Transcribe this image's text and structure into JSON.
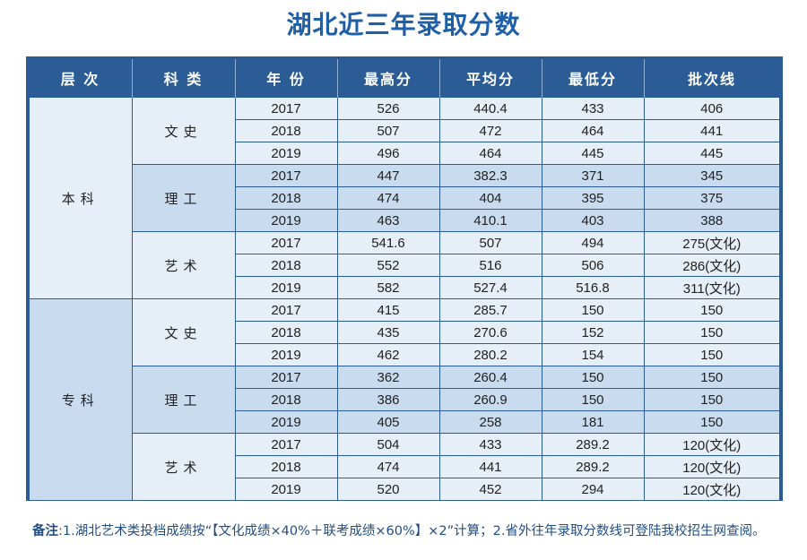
{
  "title": "湖北近三年录取分数",
  "headers": [
    "层 次",
    "科 类",
    "年 份",
    "最高分",
    "平均分",
    "最低分",
    "批次线"
  ],
  "groups": [
    {
      "level": "本科",
      "subjects": [
        {
          "name": "文史",
          "rows": [
            [
              "2017",
              "526",
              "440.4",
              "433",
              "406"
            ],
            [
              "2018",
              "507",
              "472",
              "464",
              "441"
            ],
            [
              "2019",
              "496",
              "464",
              "445",
              "445"
            ]
          ]
        },
        {
          "name": "理工",
          "rows": [
            [
              "2017",
              "447",
              "382.3",
              "371",
              "345"
            ],
            [
              "2018",
              "474",
              "404",
              "395",
              "375"
            ],
            [
              "2019",
              "463",
              "410.1",
              "403",
              "388"
            ]
          ]
        },
        {
          "name": "艺术",
          "rows": [
            [
              "2017",
              "541.6",
              "507",
              "494",
              "275(文化)"
            ],
            [
              "2018",
              "552",
              "516",
              "506",
              "286(文化)"
            ],
            [
              "2019",
              "582",
              "527.4",
              "516.8",
              "311(文化)"
            ]
          ]
        }
      ]
    },
    {
      "level": "专科",
      "subjects": [
        {
          "name": "文史",
          "rows": [
            [
              "2017",
              "415",
              "285.7",
              "150",
              "150"
            ],
            [
              "2018",
              "435",
              "270.6",
              "152",
              "150"
            ],
            [
              "2019",
              "462",
              "280.2",
              "154",
              "150"
            ]
          ]
        },
        {
          "name": "理工",
          "rows": [
            [
              "2017",
              "362",
              "260.4",
              "150",
              "150"
            ],
            [
              "2018",
              "386",
              "260.9",
              "150",
              "150"
            ],
            [
              "2019",
              "405",
              "258",
              "181",
              "150"
            ]
          ]
        },
        {
          "name": "艺术",
          "rows": [
            [
              "2017",
              "504",
              "433",
              "289.2",
              "120(文化)"
            ],
            [
              "2018",
              "474",
              "441",
              "289.2",
              "120(文化)"
            ],
            [
              "2019",
              "520",
              "452",
              "294",
              "120(文化)"
            ]
          ]
        }
      ]
    }
  ],
  "note": {
    "label": "备注",
    "text": ":1.湖北艺术类投档成绩按“【文化成绩×40%＋联考成绩×60%】×2”计算；2.省外往年录取分数线可登陆我校招生网查阅。"
  }
}
